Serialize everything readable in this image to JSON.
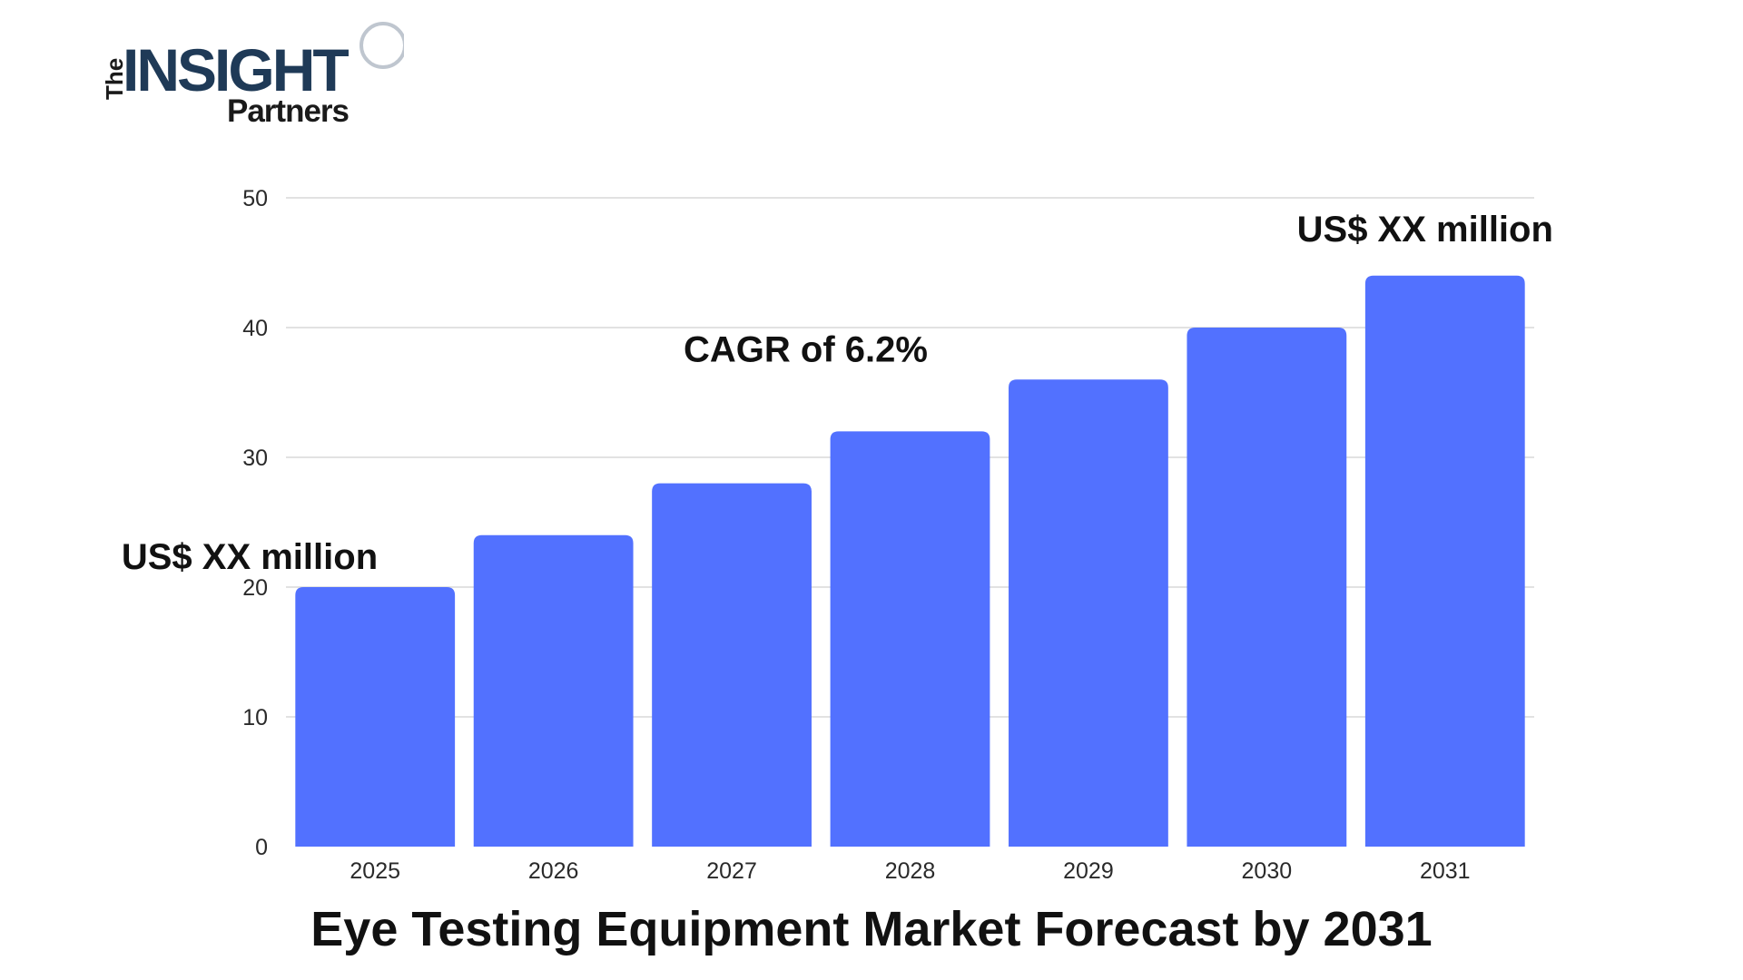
{
  "logo": {
    "word_the": "The",
    "word_insight": "INSIGHT",
    "word_partners": "Partners",
    "colors": {
      "insight": "#1f3a57",
      "text": "#1a1a1a",
      "accent": "#bfc6cf"
    }
  },
  "colors": {
    "bar": "#5271ff",
    "grid": "#d9d9d9",
    "text": "#111111",
    "tick_text": "#2a2a2a"
  },
  "chart_data": {
    "type": "bar",
    "title": "Eye Testing Equipment Market Forecast by 2031",
    "xlabel": "",
    "ylabel": "",
    "categories": [
      "2025",
      "2026",
      "2027",
      "2028",
      "2029",
      "2030",
      "2031"
    ],
    "values": [
      20,
      24,
      28,
      32,
      36,
      40,
      44
    ],
    "ylim": [
      0,
      50
    ],
    "yticks": [
      0,
      10,
      20,
      30,
      40,
      50
    ],
    "grid": true,
    "annotations": [
      {
        "text": "US$ XX million",
        "category": "2025"
      },
      {
        "text": "CAGR of 6.2%",
        "category": "2028"
      },
      {
        "text": "US$ XX million",
        "category": "2031"
      }
    ]
  }
}
